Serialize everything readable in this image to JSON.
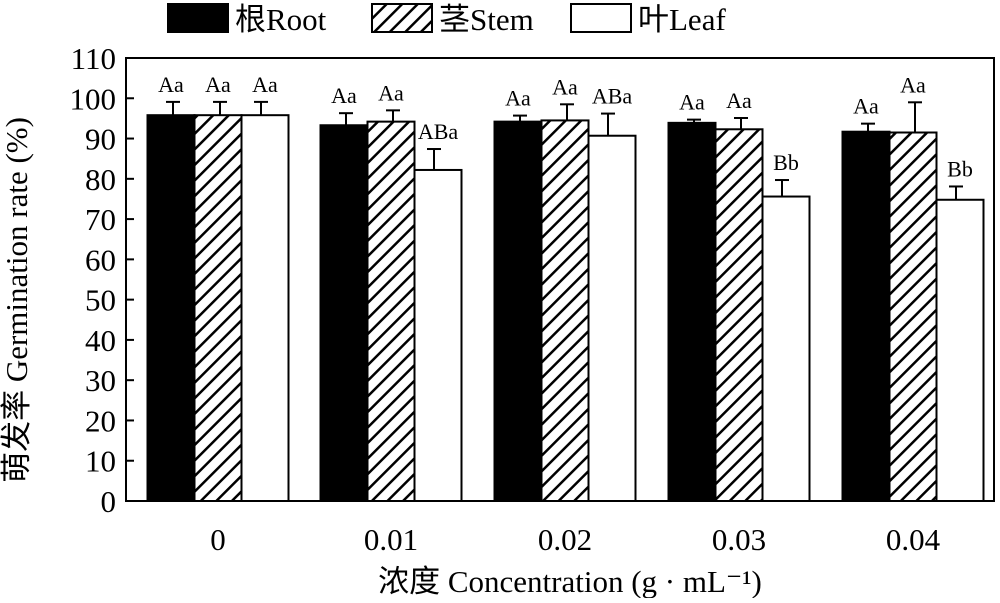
{
  "chart_data": {
    "type": "bar",
    "xlabel": "浓度 Concentration (g · mL⁻¹)",
    "ylabel": "萌发率 Germination rate (%)",
    "ylim": [
      0,
      110
    ],
    "ytick_step": 10,
    "grid": false,
    "legend_position": "top",
    "categories": [
      "0",
      "0.01",
      "0.02",
      "0.03",
      "0.04"
    ],
    "series": [
      {
        "name": "根Root",
        "fill": "solid-black",
        "values": [
          95.8,
          93.3,
          94.2,
          93.9,
          91.7
        ],
        "errors": [
          3.3,
          3.0,
          1.5,
          0.8,
          2.0
        ],
        "labels": [
          "Aa",
          "Aa",
          "Aa",
          "Aa",
          "Aa"
        ]
      },
      {
        "name": "茎Stem",
        "fill": "diagonal-hatch",
        "values": [
          95.8,
          94.2,
          94.5,
          92.3,
          91.5
        ],
        "errors": [
          3.3,
          2.8,
          4.0,
          2.8,
          7.5
        ],
        "labels": [
          "Aa",
          "Aa",
          "Aa",
          "Aa",
          "Aa"
        ]
      },
      {
        "name": "叶Leaf",
        "fill": "white",
        "values": [
          95.8,
          82.2,
          90.7,
          75.6,
          74.8
        ],
        "errors": [
          3.3,
          5.2,
          5.5,
          4.1,
          3.3
        ],
        "labels": [
          "Aa",
          "ABa",
          "ABa",
          "Bb",
          "Bb"
        ]
      }
    ],
    "colors": {
      "root": "#000000",
      "stem_hatch": "#000000",
      "leaf": "#ffffff",
      "outline": "#000000"
    }
  }
}
